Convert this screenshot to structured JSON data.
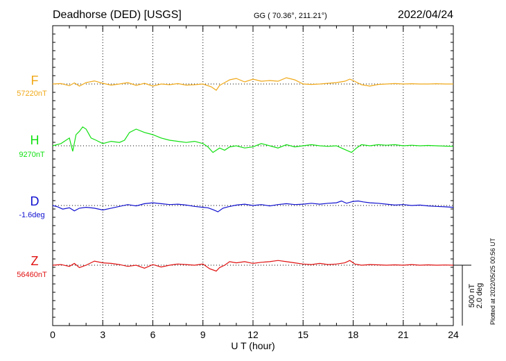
{
  "header": {
    "station": "Deadhorse (DED)  [USGS]",
    "coords": "GG ( 70.36°, 211.21°)",
    "date": "2022/04/24"
  },
  "scale_bar": {
    "line1": "500 nT",
    "line2": "2.0 deg"
  },
  "plotted_note": "Plotted at 2022/05/25 00:56 UT",
  "colors": {
    "F": "#f0a818",
    "H": "#10e010",
    "D": "#1010d0",
    "Z": "#e01010",
    "axis": "#000000",
    "grid": "#000000"
  },
  "chart_data": {
    "type": "line",
    "xlabel": "U T (hour)",
    "ylabel": "",
    "xlim": [
      0,
      24
    ],
    "x_ticks": [
      0,
      3,
      6,
      9,
      12,
      15,
      18,
      21,
      24
    ],
    "x_tick_labels": [
      "0",
      "3",
      "6",
      "9",
      "12",
      "15",
      "18",
      "21",
      "24"
    ],
    "grid_vertical": true,
    "series": [
      {
        "name": "F",
        "baseline_label": "57220nT",
        "baseline_order": 0,
        "color": "#f0a818",
        "x": [
          0,
          0.5,
          1,
          1.3,
          1.6,
          2,
          2.5,
          3,
          3.5,
          4,
          4.5,
          5,
          5.5,
          6,
          6.5,
          7,
          7.5,
          8,
          8.5,
          9,
          9.5,
          9.8,
          10,
          10.3,
          10.6,
          11,
          11.5,
          12,
          12.5,
          13,
          13.5,
          14,
          14.5,
          15,
          15.5,
          16,
          16.5,
          17,
          17.5,
          17.8,
          18,
          18.5,
          19,
          19.5,
          20,
          20.5,
          21,
          21.5,
          22,
          22.5,
          23,
          23.5,
          24
        ],
        "values": [
          0,
          3,
          -12,
          8,
          -15,
          10,
          22,
          5,
          -8,
          0,
          10,
          -10,
          5,
          -15,
          0,
          -5,
          3,
          -8,
          -5,
          0,
          -20,
          -45,
          -10,
          10,
          30,
          40,
          15,
          35,
          20,
          25,
          20,
          45,
          30,
          0,
          -3,
          0,
          5,
          10,
          20,
          35,
          25,
          -5,
          -15,
          -3,
          0,
          3,
          0,
          2,
          0,
          0,
          2,
          0,
          0
        ]
      },
      {
        "name": "H",
        "baseline_label": "9270nT",
        "baseline_order": 1,
        "color": "#10e010",
        "x": [
          0,
          0.5,
          1,
          1.2,
          1.4,
          1.6,
          1.8,
          2,
          2.3,
          2.6,
          3,
          3.5,
          4,
          4.3,
          4.6,
          5,
          5.5,
          6,
          6.5,
          7,
          7.5,
          8,
          8.5,
          9,
          9.3,
          9.6,
          10,
          10.3,
          10.6,
          11,
          11.5,
          12,
          12.5,
          13,
          13.5,
          14,
          14.5,
          15,
          15.5,
          16,
          16.5,
          17,
          17.3,
          17.6,
          17.9,
          18.2,
          18.5,
          19,
          19.5,
          20,
          20.5,
          21,
          21.5,
          22,
          22.5,
          23,
          23.5,
          24
        ],
        "values": [
          0,
          20,
          70,
          -50,
          100,
          130,
          170,
          150,
          70,
          50,
          20,
          40,
          30,
          50,
          120,
          150,
          120,
          100,
          70,
          50,
          40,
          30,
          40,
          20,
          -10,
          -60,
          -20,
          -40,
          -10,
          0,
          -20,
          -10,
          20,
          0,
          -20,
          10,
          -10,
          0,
          10,
          0,
          -5,
          0,
          -20,
          -40,
          -60,
          -20,
          10,
          0,
          10,
          5,
          10,
          0,
          5,
          0,
          3,
          0,
          -3,
          -5
        ]
      },
      {
        "name": "D",
        "baseline_label": "-1.6deg",
        "baseline_order": 2,
        "color": "#1010d0",
        "x": [
          0,
          0.3,
          0.6,
          1,
          1.3,
          1.6,
          2,
          2.5,
          3,
          3.5,
          4,
          4.5,
          5,
          5.5,
          6,
          6.5,
          7,
          7.5,
          8,
          8.5,
          9,
          9.3,
          9.6,
          9.9,
          10.2,
          10.5,
          11,
          11.5,
          12,
          12.5,
          13,
          13.5,
          14,
          14.5,
          15,
          15.5,
          16,
          16.5,
          17,
          17.3,
          17.6,
          18,
          18.3,
          18.6,
          19,
          19.5,
          20,
          20.5,
          21,
          21.5,
          22,
          22.5,
          23,
          23.5,
          24
        ],
        "values": [
          0,
          -0.3,
          -0.8,
          -0.5,
          -1.2,
          -0.6,
          -0.4,
          -0.6,
          -1.0,
          -0.6,
          -0.2,
          0.2,
          -0.1,
          0.4,
          0.6,
          0.4,
          0.2,
          0.3,
          0.1,
          -0.2,
          -0.4,
          -0.5,
          -0.9,
          -1.4,
          -0.6,
          -0.3,
          0.1,
          0.3,
          0.0,
          0.2,
          -0.1,
          0.2,
          0.4,
          0.2,
          0.3,
          0.5,
          0.3,
          0.5,
          0.6,
          1.0,
          0.5,
          0.9,
          1.0,
          0.8,
          0.6,
          0.5,
          0.3,
          0.1,
          0.2,
          0.0,
          0.1,
          -0.1,
          -0.2,
          -0.3,
          -0.4
        ]
      },
      {
        "name": "Z",
        "baseline_label": "56460nT",
        "baseline_order": 3,
        "color": "#e01010",
        "x": [
          0,
          0.5,
          1,
          1.3,
          1.6,
          2,
          2.5,
          3,
          3.5,
          4,
          4.5,
          5,
          5.5,
          6,
          6.5,
          7,
          7.5,
          8,
          8.5,
          9,
          9.4,
          9.8,
          10,
          10.3,
          10.6,
          11,
          11.5,
          12,
          12.5,
          13,
          13.5,
          14,
          14.5,
          15,
          15.5,
          16,
          16.5,
          17,
          17.5,
          17.8,
          18.1,
          18.5,
          19,
          19.5,
          20,
          20.5,
          21,
          21.5,
          22,
          22.5,
          23,
          23.5,
          24
        ],
        "values": [
          0,
          5,
          -10,
          15,
          -20,
          0,
          35,
          20,
          15,
          5,
          -10,
          0,
          -25,
          5,
          -15,
          0,
          10,
          5,
          0,
          10,
          -30,
          -50,
          -20,
          0,
          30,
          20,
          30,
          15,
          25,
          30,
          40,
          30,
          20,
          10,
          5,
          15,
          5,
          10,
          20,
          40,
          10,
          0,
          5,
          3,
          0,
          3,
          0,
          5,
          0,
          3,
          0,
          2,
          0
        ]
      }
    ],
    "scale_note": "500 nT per bar / 2.0 deg per bar"
  }
}
